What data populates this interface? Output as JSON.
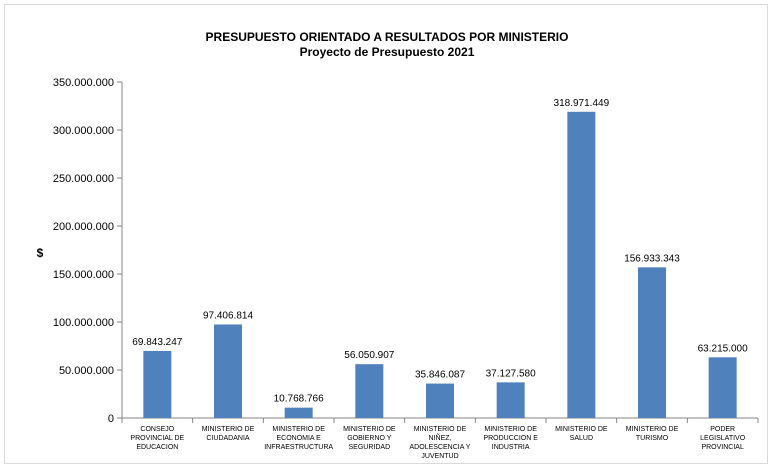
{
  "chart_data": {
    "type": "bar",
    "title": "PRESUPUESTO  ORIENTADO  A RESULTADOS  POR MINISTERIO",
    "subtitle": "Proyecto de Presupuesto 2021",
    "ylabel": "$",
    "xlabel": "",
    "ylim": [
      0,
      350000000
    ],
    "yticks": [
      0,
      50000000,
      100000000,
      150000000,
      200000000,
      250000000,
      300000000,
      350000000
    ],
    "ytick_labels": [
      "0",
      "50.000.000",
      "100.000.000",
      "150.000.000",
      "200.000.000",
      "250.000.000",
      "300.000.000",
      "350.000.000"
    ],
    "grid": false,
    "legend": "none",
    "bar_color": "#4f81bd",
    "categories": [
      [
        "CONSEJO",
        "PROVINCIAL DE",
        "EDUCACION"
      ],
      [
        "MINISTERIO DE",
        "CIUDADANIA"
      ],
      [
        "MINISTERIO DE",
        "ECONOMIA E",
        "INFRAESTRUCTURA"
      ],
      [
        "MINISTERIO DE",
        "GOBIERNO Y",
        "SEGURIDAD"
      ],
      [
        "MINISTERIO DE",
        "NIÑEZ,",
        "ADOLESCENCIA Y",
        "JUVENTUD"
      ],
      [
        "MINISTERIO DE",
        "PRODUCCION E",
        "INDUSTRIA"
      ],
      [
        "MINISTERIO DE",
        "SALUD"
      ],
      [
        "MINISTERIO DE",
        "TURISMO"
      ],
      [
        "PODER",
        "LEGISLATIVO",
        "PROVINCIAL"
      ]
    ],
    "values": [
      69843247,
      97406814,
      10768766,
      56050907,
      35846087,
      37127580,
      318971449,
      156933343,
      63215000
    ],
    "value_labels": [
      "69.843.247",
      "97.406.814",
      "10.768.766",
      "56.050.907",
      "35.846.087",
      "37.127.580",
      "318.971.449",
      "156.933.343",
      "63.215.000"
    ]
  }
}
